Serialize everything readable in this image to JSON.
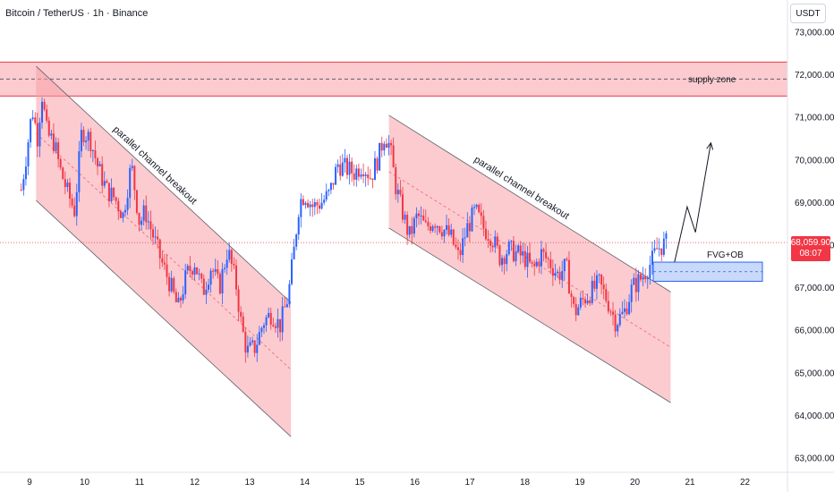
{
  "header": {
    "title": "Bitcoin / TetherUS · 1h · Binance",
    "currency": "USDT"
  },
  "price_tag": {
    "price": "68,059.90",
    "countdown": "08:07"
  },
  "colors": {
    "up": "#2962ff",
    "down": "#f23645",
    "zone": "#f7a1a8",
    "fvg": "#bcd0f7"
  },
  "chart_data": {
    "type": "candlestick",
    "title": "Bitcoin / TetherUS · 1h · Binance",
    "ylim": [
      62800,
      73600
    ],
    "y_ticks": [
      "73,000.00",
      "72,000.00",
      "71,000.00",
      "70,000.00",
      "69,000.00",
      "68,000.00",
      "67,000.00",
      "66,000.00",
      "65,000.00",
      "64,000.00",
      "63,000.00"
    ],
    "y_tick_values": [
      73000,
      72000,
      71000,
      70000,
      69000,
      68000,
      67000,
      66000,
      65000,
      64000,
      63000
    ],
    "x_ticks": [
      "9",
      "10",
      "11",
      "12",
      "13",
      "14",
      "15",
      "16",
      "17",
      "18",
      "19",
      "20",
      "21",
      "22"
    ],
    "last_price": 68059.9,
    "supply_zone": {
      "low": 71500,
      "high": 72300,
      "label": "supply zone"
    },
    "fvg_ob": {
      "low": 67150,
      "high": 67600,
      "label": "FVG+OB"
    },
    "channels": [
      {
        "label": "parallel channel breakout",
        "start_day": 9.12,
        "end_day": 13.75,
        "start_upper": 72200,
        "end_upper": 66650,
        "start_lower": 69050,
        "end_lower": 63500
      },
      {
        "label": "parallel channel breakout",
        "start_day": 15.53,
        "end_day": 20.65,
        "start_upper": 71050,
        "end_upper": 66900,
        "start_lower": 68400,
        "end_lower": 64300
      }
    ],
    "projection": [
      [
        20.72,
        67600
      ],
      [
        20.95,
        68900
      ],
      [
        21.1,
        68300
      ],
      [
        21.38,
        70400
      ]
    ],
    "price_path": [
      [
        8.85,
        69300
      ],
      [
        8.95,
        70200
      ],
      [
        9.05,
        71200
      ],
      [
        9.15,
        70500
      ],
      [
        9.22,
        71600
      ],
      [
        9.32,
        70600
      ],
      [
        9.45,
        70400
      ],
      [
        9.55,
        69800
      ],
      [
        9.7,
        69200
      ],
      [
        9.82,
        68800
      ],
      [
        9.95,
        70700
      ],
      [
        10.1,
        70500
      ],
      [
        10.25,
        69800
      ],
      [
        10.4,
        69300
      ],
      [
        10.55,
        69100
      ],
      [
        10.7,
        68700
      ],
      [
        10.85,
        69900
      ],
      [
        11.0,
        68500
      ],
      [
        11.1,
        68800
      ],
      [
        11.25,
        68200
      ],
      [
        11.4,
        67600
      ],
      [
        11.55,
        67100
      ],
      [
        11.7,
        66500
      ],
      [
        11.85,
        67300
      ],
      [
        12.0,
        67600
      ],
      [
        12.15,
        66900
      ],
      [
        12.3,
        67500
      ],
      [
        12.45,
        67000
      ],
      [
        12.6,
        67900
      ],
      [
        12.75,
        67100
      ],
      [
        12.85,
        66100
      ],
      [
        12.95,
        65500
      ],
      [
        13.1,
        65600
      ],
      [
        13.25,
        66200
      ],
      [
        13.4,
        66400
      ],
      [
        13.55,
        66100
      ],
      [
        13.7,
        66800
      ],
      [
        13.8,
        67800
      ],
      [
        13.9,
        69000
      ],
      [
        14.0,
        69200
      ],
      [
        14.15,
        68900
      ],
      [
        14.3,
        69000
      ],
      [
        14.45,
        69200
      ],
      [
        14.6,
        69900
      ],
      [
        14.75,
        69800
      ],
      [
        14.9,
        69700
      ],
      [
        15.05,
        69900
      ],
      [
        15.2,
        69600
      ],
      [
        15.35,
        70100
      ],
      [
        15.45,
        70600
      ],
      [
        15.55,
        70300
      ],
      [
        15.65,
        69400
      ],
      [
        15.75,
        68900
      ],
      [
        15.9,
        68200
      ],
      [
        16.05,
        68700
      ],
      [
        16.2,
        68400
      ],
      [
        16.35,
        68600
      ],
      [
        16.5,
        68400
      ],
      [
        16.65,
        68200
      ],
      [
        16.8,
        67700
      ],
      [
        16.95,
        68400
      ],
      [
        17.1,
        68800
      ],
      [
        17.25,
        68400
      ],
      [
        17.4,
        68200
      ],
      [
        17.55,
        67700
      ],
      [
        17.7,
        67900
      ],
      [
        17.85,
        67800
      ],
      [
        18.0,
        67700
      ],
      [
        18.15,
        67400
      ],
      [
        18.3,
        67800
      ],
      [
        18.45,
        67600
      ],
      [
        18.6,
        67300
      ],
      [
        18.75,
        67500
      ],
      [
        18.9,
        66400
      ],
      [
        19.05,
        66700
      ],
      [
        19.2,
        66900
      ],
      [
        19.35,
        67100
      ],
      [
        19.5,
        66700
      ],
      [
        19.65,
        66200
      ],
      [
        19.8,
        66400
      ],
      [
        19.95,
        67000
      ],
      [
        20.1,
        67200
      ],
      [
        20.2,
        67400
      ],
      [
        20.3,
        67600
      ],
      [
        20.4,
        67900
      ],
      [
        20.5,
        68000
      ],
      [
        20.6,
        68060
      ]
    ]
  }
}
